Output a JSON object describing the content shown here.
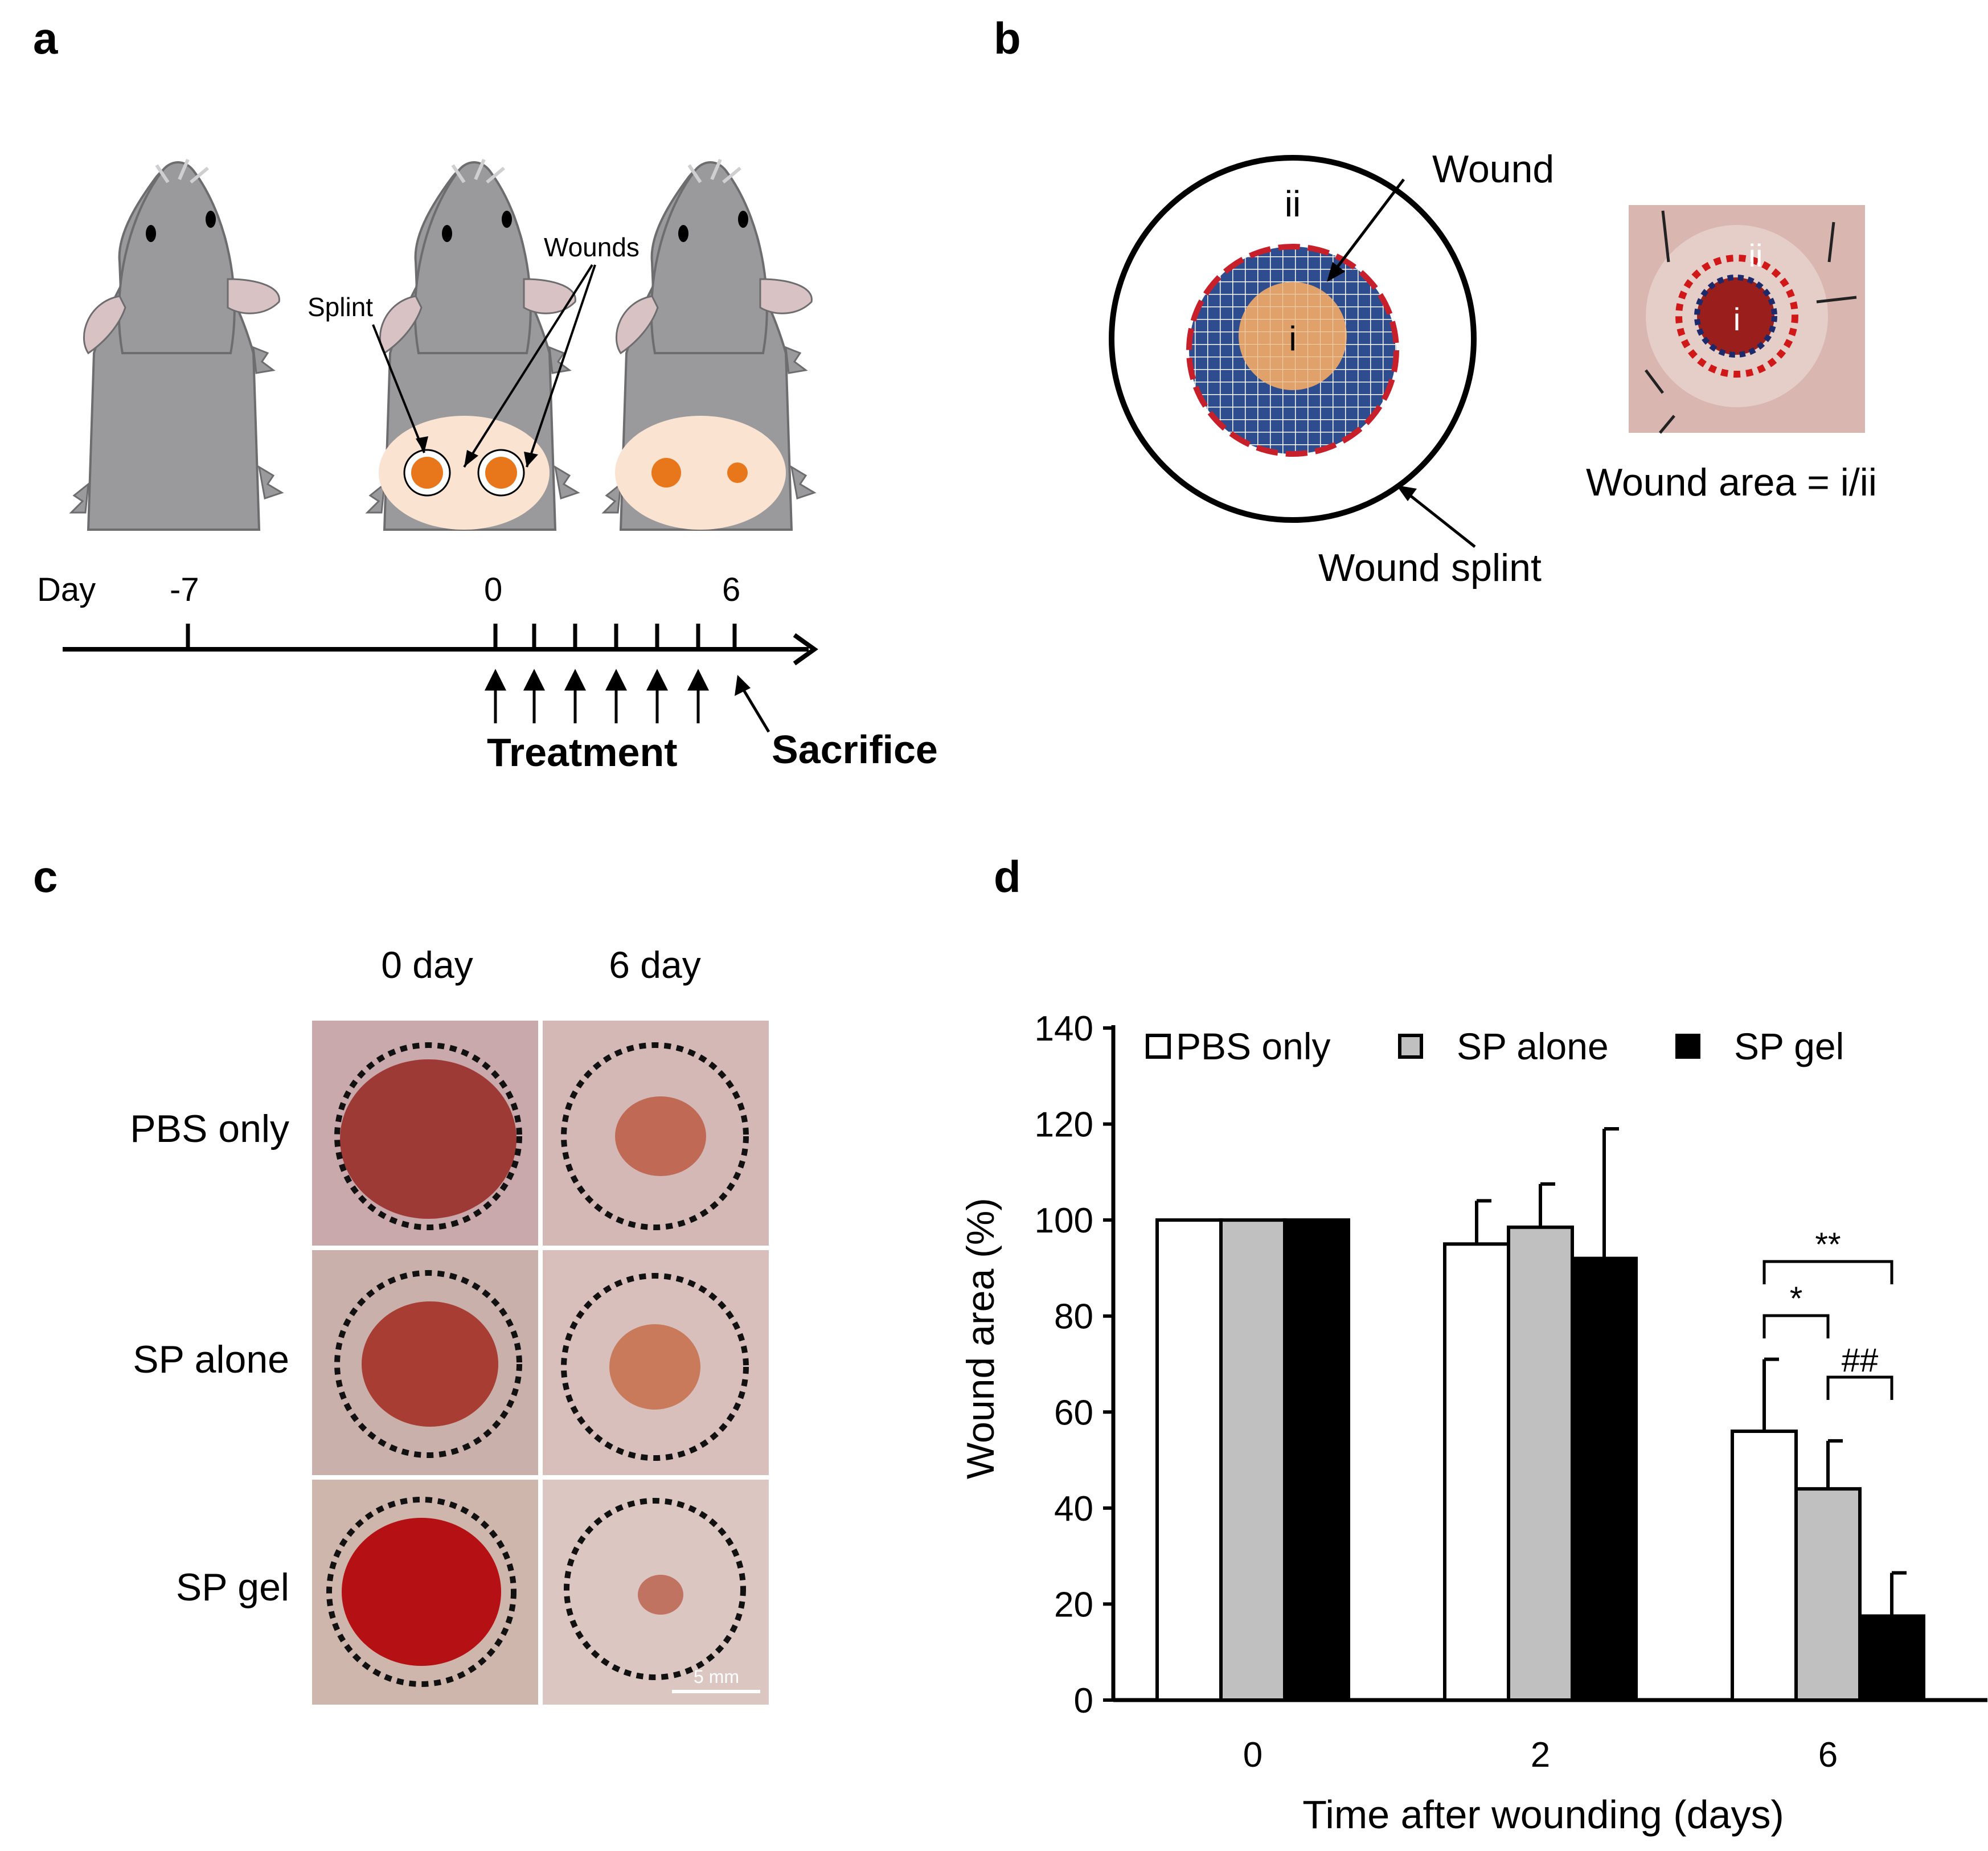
{
  "panels": {
    "a": {
      "letter": "a",
      "labels": {
        "splint": "Splint",
        "wounds": "Wounds"
      },
      "timeline": {
        "day_label": "Day",
        "ticks": [
          "-7",
          "0",
          "6"
        ],
        "treatment": "Treatment",
        "sacrifice": "Sacrifice"
      }
    },
    "b": {
      "letter": "b",
      "wound_label": "Wound",
      "splint_label": "Wound splint",
      "zone_outer": "ii",
      "zone_inner": "i",
      "photo_outer": "ii",
      "photo_inner": "i",
      "formula": "Wound area = i/ii"
    },
    "c": {
      "letter": "c",
      "columns": [
        "0 day",
        "6 day"
      ],
      "rows": [
        "PBS only",
        "SP alone",
        "SP gel"
      ],
      "scale_bar": "5 mm"
    },
    "d": {
      "letter": "d"
    }
  },
  "chart_data": {
    "type": "bar",
    "xlabel": "Time after wounding (days)",
    "ylabel": "Wound area (%)",
    "categories": [
      "0",
      "2",
      "6"
    ],
    "ylim": [
      0,
      140
    ],
    "yticks": [
      0,
      20,
      40,
      60,
      80,
      100,
      120,
      140
    ],
    "legend_position": "top",
    "series": [
      {
        "name": "PBS only",
        "values": [
          100,
          95,
          56
        ],
        "errors": [
          0,
          9,
          15
        ],
        "fill": "#ffffff"
      },
      {
        "name": "SP alone",
        "values": [
          100,
          98.5,
          44
        ],
        "errors": [
          0,
          9,
          10
        ],
        "fill": "#c0c0c0"
      },
      {
        "name": "SP gel",
        "values": [
          100,
          92,
          17.5
        ],
        "errors": [
          0.5,
          27,
          9
        ],
        "fill": "#000000"
      }
    ],
    "annotations": [
      {
        "text": "*",
        "between": [
          "PBS only",
          "SP alone"
        ],
        "category": "6"
      },
      {
        "text": "**",
        "between": [
          "PBS only",
          "SP gel"
        ],
        "category": "6"
      },
      {
        "text": "##",
        "between": [
          "SP alone",
          "SP gel"
        ],
        "category": "6"
      }
    ]
  }
}
